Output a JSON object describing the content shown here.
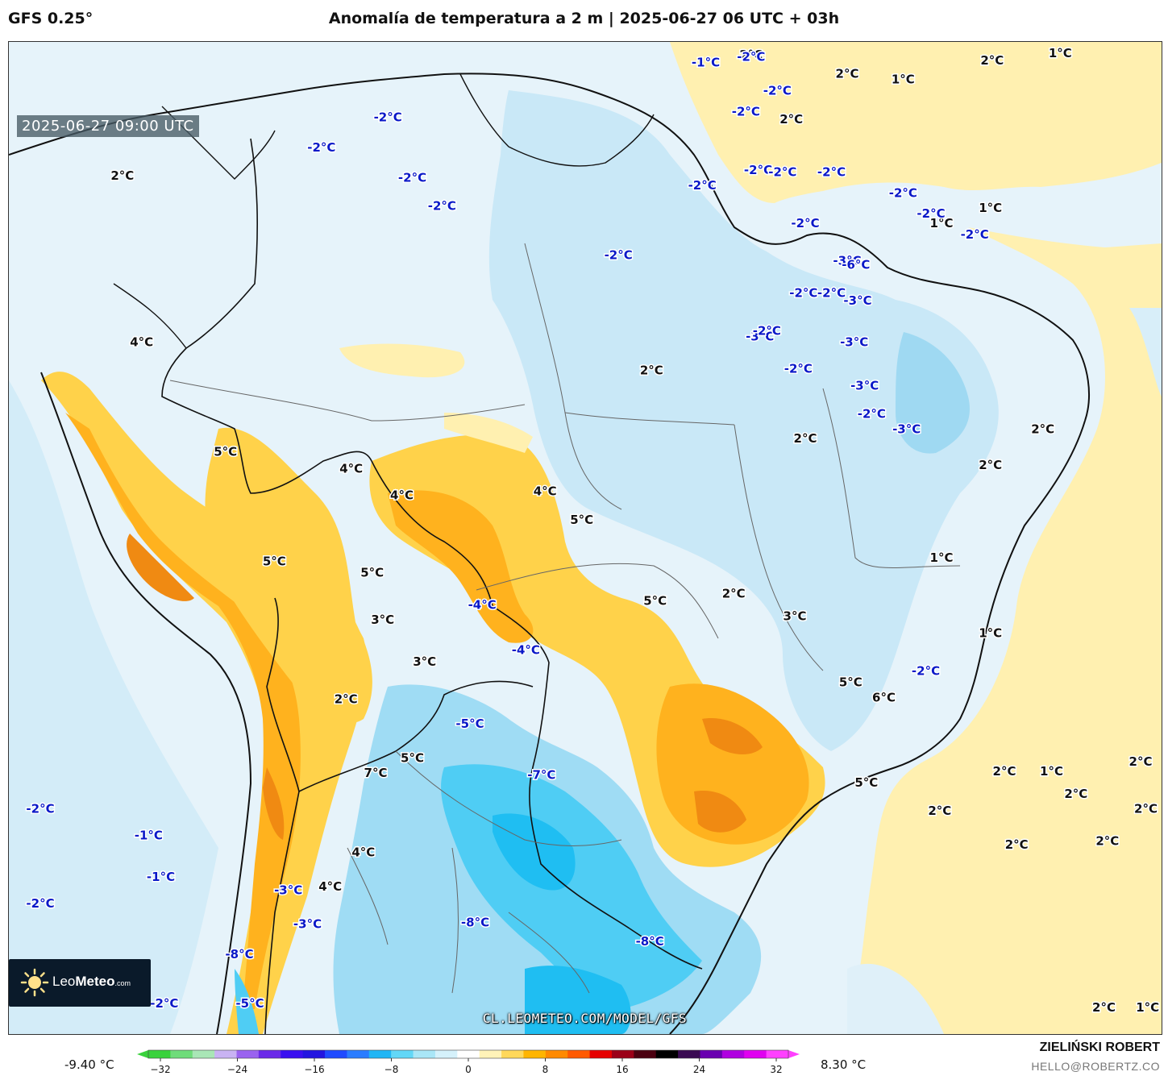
{
  "header": {
    "model": "GFS 0.25°",
    "title": "Anomalía de temperatura a 2 m | 2025-06-27 06 UTC + 03h"
  },
  "map": {
    "timestamp": "2025-06-27 09:00 UTC",
    "watermark": "CL.LEOMETEO.COM/MODEL/GFS",
    "logo": {
      "brand_light": "Leo",
      "brand_bold": "Meteo",
      "brand_suffix": ".com"
    },
    "labels": [
      {
        "text": "2°C",
        "lon": -37.5,
        "lat": 5.6,
        "tone": "warm"
      },
      {
        "text": "2°C",
        "lon": -32.0,
        "lat": 4.6,
        "tone": "warm"
      },
      {
        "text": "1°C",
        "lon": -28.8,
        "lat": 4.3,
        "tone": "warm"
      },
      {
        "text": "2°C",
        "lon": -23.7,
        "lat": 5.3,
        "tone": "warm"
      },
      {
        "text": "1°C",
        "lon": -19.8,
        "lat": 5.7,
        "tone": "warm"
      },
      {
        "text": "2°C",
        "lon": -35.2,
        "lat": 2.2,
        "tone": "warm"
      },
      {
        "text": "2°C",
        "lon": -73.5,
        "lat": -0.8,
        "tone": "warm"
      },
      {
        "text": "1°C",
        "lon": -26.6,
        "lat": -3.3,
        "tone": "warm"
      },
      {
        "text": "1°C",
        "lon": -23.8,
        "lat": -2.5,
        "tone": "warm"
      },
      {
        "text": "4°C",
        "lon": -72.4,
        "lat": -9.6,
        "tone": "warm"
      },
      {
        "text": "2°C",
        "lon": -43.2,
        "lat": -11.1,
        "tone": "warm"
      },
      {
        "text": "2°C",
        "lon": -34.4,
        "lat": -14.7,
        "tone": "warm"
      },
      {
        "text": "5°C",
        "lon": -67.6,
        "lat": -15.4,
        "tone": "warm"
      },
      {
        "text": "4°C",
        "lon": -60.4,
        "lat": -16.3,
        "tone": "warm"
      },
      {
        "text": "4°C",
        "lon": -57.5,
        "lat": -17.7,
        "tone": "warm"
      },
      {
        "text": "4°C",
        "lon": -49.3,
        "lat": -17.5,
        "tone": "warm"
      },
      {
        "text": "5°C",
        "lon": -47.2,
        "lat": -19.0,
        "tone": "warm"
      },
      {
        "text": "2°C",
        "lon": -20.8,
        "lat": -14.2,
        "tone": "warm"
      },
      {
        "text": "2°C",
        "lon": -23.8,
        "lat": -16.1,
        "tone": "warm"
      },
      {
        "text": "5°C",
        "lon": -64.8,
        "lat": -21.2,
        "tone": "warm"
      },
      {
        "text": "5°C",
        "lon": -59.2,
        "lat": -21.8,
        "tone": "warm"
      },
      {
        "text": "5°C",
        "lon": -43.0,
        "lat": -23.3,
        "tone": "warm"
      },
      {
        "text": "2°C",
        "lon": -38.5,
        "lat": -22.9,
        "tone": "warm"
      },
      {
        "text": "3°C",
        "lon": -35.0,
        "lat": -24.1,
        "tone": "warm"
      },
      {
        "text": "1°C",
        "lon": -26.6,
        "lat": -21.0,
        "tone": "warm"
      },
      {
        "text": "3°C",
        "lon": -58.6,
        "lat": -24.3,
        "tone": "warm"
      },
      {
        "text": "3°C",
        "lon": -56.2,
        "lat": -26.5,
        "tone": "warm"
      },
      {
        "text": "1°C",
        "lon": -23.8,
        "lat": -25.0,
        "tone": "warm"
      },
      {
        "text": "5°C",
        "lon": -31.8,
        "lat": -27.6,
        "tone": "warm"
      },
      {
        "text": "6°C",
        "lon": -29.9,
        "lat": -28.4,
        "tone": "warm"
      },
      {
        "text": "2°C",
        "lon": -60.7,
        "lat": -28.5,
        "tone": "warm"
      },
      {
        "text": "5°C",
        "lon": -56.9,
        "lat": -31.6,
        "tone": "warm"
      },
      {
        "text": "7°C",
        "lon": -59.0,
        "lat": -32.4,
        "tone": "warm"
      },
      {
        "text": "5°C",
        "lon": -30.9,
        "lat": -32.9,
        "tone": "warm"
      },
      {
        "text": "2°C",
        "lon": -23.0,
        "lat": -32.3,
        "tone": "warm"
      },
      {
        "text": "1°C",
        "lon": -20.3,
        "lat": -32.3,
        "tone": "warm"
      },
      {
        "text": "2°C",
        "lon": -15.2,
        "lat": -31.8,
        "tone": "warm"
      },
      {
        "text": "2°C",
        "lon": -18.9,
        "lat": -33.5,
        "tone": "warm"
      },
      {
        "text": "2°C",
        "lon": -26.7,
        "lat": -34.4,
        "tone": "warm"
      },
      {
        "text": "2°C",
        "lon": -14.9,
        "lat": -34.3,
        "tone": "warm"
      },
      {
        "text": "4°C",
        "lon": -59.7,
        "lat": -36.6,
        "tone": "warm"
      },
      {
        "text": "2°C",
        "lon": -22.3,
        "lat": -36.2,
        "tone": "warm"
      },
      {
        "text": "2°C",
        "lon": -17.1,
        "lat": -36.0,
        "tone": "warm"
      },
      {
        "text": "4°C",
        "lon": -61.6,
        "lat": -38.4,
        "tone": "warm"
      },
      {
        "text": "2°C",
        "lon": -17.3,
        "lat": -44.8,
        "tone": "warm"
      },
      {
        "text": "1°C",
        "lon": -14.8,
        "lat": -44.8,
        "tone": "warm"
      },
      {
        "text": "-1°C",
        "lon": -40.1,
        "lat": 5.2,
        "tone": "cool"
      },
      {
        "text": "-2°C",
        "lon": -37.5,
        "lat": 5.5,
        "tone": "cool"
      },
      {
        "text": "-2°C",
        "lon": -36.0,
        "lat": 3.7,
        "tone": "cool"
      },
      {
        "text": "-2°C",
        "lon": -37.8,
        "lat": 2.6,
        "tone": "cool"
      },
      {
        "text": "-2°C",
        "lon": -58.3,
        "lat": 2.3,
        "tone": "cool"
      },
      {
        "text": "-2°C",
        "lon": -62.1,
        "lat": 0.7,
        "tone": "cool"
      },
      {
        "text": "-2°C",
        "lon": -56.9,
        "lat": -0.9,
        "tone": "cool"
      },
      {
        "text": "-2°C",
        "lon": -37.1,
        "lat": -0.5,
        "tone": "cool"
      },
      {
        "text": "-2°C",
        "lon": -35.7,
        "lat": -0.6,
        "tone": "cool"
      },
      {
        "text": "-2°C",
        "lon": -32.9,
        "lat": -0.6,
        "tone": "cool"
      },
      {
        "text": "-2°C",
        "lon": -40.3,
        "lat": -1.3,
        "tone": "cool"
      },
      {
        "text": "-2°C",
        "lon": -55.2,
        "lat": -2.4,
        "tone": "cool"
      },
      {
        "text": "-2°C",
        "lon": -28.8,
        "lat": -1.7,
        "tone": "cool"
      },
      {
        "text": "-2°C",
        "lon": -27.2,
        "lat": -2.8,
        "tone": "cool"
      },
      {
        "text": "-2°C",
        "lon": -34.4,
        "lat": -3.3,
        "tone": "cool"
      },
      {
        "text": "-2°C",
        "lon": -24.7,
        "lat": -3.9,
        "tone": "cool"
      },
      {
        "text": "-2°C",
        "lon": -45.1,
        "lat": -5.0,
        "tone": "cool"
      },
      {
        "text": "-3°C",
        "lon": -32.0,
        "lat": -5.3,
        "tone": "cool"
      },
      {
        "text": "-6°C",
        "lon": -31.5,
        "lat": -5.5,
        "tone": "cool"
      },
      {
        "text": "-2°C",
        "lon": -34.5,
        "lat": -7.0,
        "tone": "cool"
      },
      {
        "text": "-2°C",
        "lon": -32.9,
        "lat": -7.0,
        "tone": "cool"
      },
      {
        "text": "-3°C",
        "lon": -31.4,
        "lat": -7.4,
        "tone": "cool"
      },
      {
        "text": "-3°C",
        "lon": -37.0,
        "lat": -9.3,
        "tone": "cool"
      },
      {
        "text": "-2°C",
        "lon": -36.6,
        "lat": -9.0,
        "tone": "cool"
      },
      {
        "text": "-3°C",
        "lon": -31.6,
        "lat": -9.6,
        "tone": "cool"
      },
      {
        "text": "-2°C",
        "lon": -34.8,
        "lat": -11.0,
        "tone": "cool"
      },
      {
        "text": "-3°C",
        "lon": -31.0,
        "lat": -11.9,
        "tone": "cool"
      },
      {
        "text": "-2°C",
        "lon": -30.6,
        "lat": -13.4,
        "tone": "cool"
      },
      {
        "text": "-3°C",
        "lon": -28.6,
        "lat": -14.2,
        "tone": "cool"
      },
      {
        "text": "-4°C",
        "lon": -52.9,
        "lat": -23.5,
        "tone": "cool"
      },
      {
        "text": "-4°C",
        "lon": -50.4,
        "lat": -25.9,
        "tone": "cool"
      },
      {
        "text": "-2°C",
        "lon": -27.5,
        "lat": -27.0,
        "tone": "cool"
      },
      {
        "text": "-5°C",
        "lon": -53.6,
        "lat": -29.8,
        "tone": "cool"
      },
      {
        "text": "-7°C",
        "lon": -49.5,
        "lat": -32.5,
        "tone": "cool"
      },
      {
        "text": "-2°C",
        "lon": -78.2,
        "lat": -34.3,
        "tone": "cool"
      },
      {
        "text": "-1°C",
        "lon": -72.0,
        "lat": -35.7,
        "tone": "cool"
      },
      {
        "text": "-1°C",
        "lon": -71.3,
        "lat": -37.9,
        "tone": "cool"
      },
      {
        "text": "-3°C",
        "lon": -64.0,
        "lat": -38.6,
        "tone": "cool"
      },
      {
        "text": "-2°C",
        "lon": -78.2,
        "lat": -39.3,
        "tone": "cool"
      },
      {
        "text": "-3°C",
        "lon": -62.9,
        "lat": -40.4,
        "tone": "cool"
      },
      {
        "text": "-8°C",
        "lon": -53.3,
        "lat": -40.3,
        "tone": "cool"
      },
      {
        "text": "-8°C",
        "lon": -43.3,
        "lat": -41.3,
        "tone": "cool"
      },
      {
        "text": "-8°C",
        "lon": -66.8,
        "lat": -42.0,
        "tone": "cool"
      },
      {
        "text": "-2°C",
        "lon": -71.1,
        "lat": -44.6,
        "tone": "cool"
      },
      {
        "text": "-5°C",
        "lon": -66.2,
        "lat": -44.6,
        "tone": "cool"
      }
    ]
  },
  "legend": {
    "min_label": "-9.40 °C",
    "max_label": "8.30 °C",
    "ticks": [
      "−32",
      "−24",
      "−16",
      "−8",
      "0",
      "8",
      "16",
      "24",
      "32"
    ],
    "colors": [
      "#39d23c",
      "#6fdc7a",
      "#a9e6b6",
      "#c9b3f3",
      "#9a63ef",
      "#6b2ae8",
      "#3a0ff0",
      "#2315e0",
      "#1f4bff",
      "#2a7dff",
      "#20b6f5",
      "#62d7f7",
      "#a9e6f7",
      "#d5f1fb",
      "#ffffff",
      "#fff3b8",
      "#ffd85a",
      "#ffb500",
      "#ff8a00",
      "#ff5a00",
      "#e60000",
      "#9b0018",
      "#4b0010",
      "#000000",
      "#3a0a52",
      "#6a00b0",
      "#b000e0",
      "#e000f0",
      "#ff40ff"
    ]
  },
  "colors": {
    "warm_label": "#111111",
    "cool_label": "#0a18c8",
    "anomaly_warm_light": "#fff1b0",
    "anomaly_warm": "#ffd24a",
    "anomaly_warm_strong": "#ffb21e",
    "anomaly_warm_max": "#f08a12",
    "anomaly_cool_light": "#d6eef9",
    "anomaly_cool": "#9fdcf4",
    "anomaly_cool_strong": "#4fcdf4",
    "anomaly_cool_max": "#1fbef2",
    "neutral": "#eef7fc"
  },
  "author": {
    "name": "ZIELIŃSKI ROBERT",
    "email": "HELLO@ROBERTZ.CO"
  }
}
